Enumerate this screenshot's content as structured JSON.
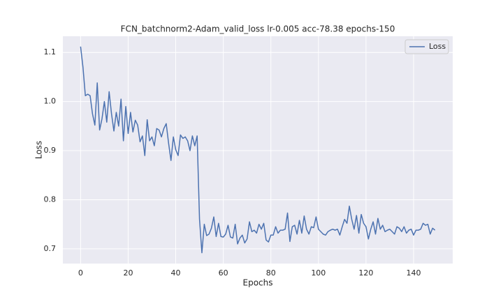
{
  "chart_data": {
    "type": "line",
    "title": "FCN_batchnorm2-Adam_valid_loss lr-0.005 acc-78.38 epochs-150",
    "xlabel": "Epochs",
    "ylabel": "Loss",
    "x": [
      0,
      1,
      2,
      3,
      4,
      5,
      6,
      7,
      8,
      9,
      10,
      11,
      12,
      13,
      14,
      15,
      16,
      17,
      18,
      19,
      20,
      21,
      22,
      23,
      24,
      25,
      26,
      27,
      28,
      29,
      30,
      31,
      32,
      33,
      34,
      35,
      36,
      37,
      38,
      39,
      40,
      41,
      42,
      43,
      44,
      45,
      46,
      47,
      48,
      49,
      50,
      51,
      52,
      53,
      54,
      55,
      56,
      57,
      58,
      59,
      60,
      61,
      62,
      63,
      64,
      65,
      66,
      67,
      68,
      69,
      70,
      71,
      72,
      73,
      74,
      75,
      76,
      77,
      78,
      79,
      80,
      81,
      82,
      83,
      84,
      85,
      86,
      87,
      88,
      89,
      90,
      91,
      92,
      93,
      94,
      95,
      96,
      97,
      98,
      99,
      100,
      101,
      102,
      103,
      104,
      105,
      106,
      107,
      108,
      109,
      110,
      111,
      112,
      113,
      114,
      115,
      116,
      117,
      118,
      119,
      120,
      121,
      122,
      123,
      124,
      125,
      126,
      127,
      128,
      129,
      130,
      131,
      132,
      133,
      134,
      135,
      136,
      137,
      138,
      139,
      140,
      141,
      142,
      143,
      144,
      145,
      146,
      147,
      148,
      149
    ],
    "series": [
      {
        "name": "Loss",
        "color": "#4c72b0",
        "values": [
          1.112,
          1.07,
          1.012,
          1.015,
          1.012,
          0.975,
          0.952,
          1.038,
          0.942,
          0.965,
          1.0,
          0.958,
          1.02,
          0.975,
          0.94,
          0.978,
          0.95,
          1.005,
          0.92,
          0.99,
          0.935,
          0.978,
          0.938,
          0.962,
          0.952,
          0.918,
          0.93,
          0.89,
          0.963,
          0.92,
          0.928,
          0.91,
          0.945,
          0.942,
          0.928,
          0.945,
          0.955,
          0.915,
          0.88,
          0.928,
          0.902,
          0.89,
          0.932,
          0.925,
          0.928,
          0.92,
          0.9,
          0.93,
          0.91,
          0.93,
          0.76,
          0.692,
          0.75,
          0.727,
          0.73,
          0.742,
          0.765,
          0.725,
          0.752,
          0.725,
          0.724,
          0.73,
          0.748,
          0.724,
          0.722,
          0.75,
          0.71,
          0.722,
          0.728,
          0.712,
          0.72,
          0.755,
          0.735,
          0.738,
          0.732,
          0.75,
          0.74,
          0.752,
          0.718,
          0.714,
          0.728,
          0.728,
          0.745,
          0.732,
          0.738,
          0.738,
          0.74,
          0.773,
          0.715,
          0.745,
          0.748,
          0.73,
          0.758,
          0.732,
          0.767,
          0.74,
          0.73,
          0.745,
          0.743,
          0.765,
          0.74,
          0.735,
          0.73,
          0.728,
          0.735,
          0.738,
          0.74,
          0.738,
          0.74,
          0.728,
          0.745,
          0.76,
          0.752,
          0.787,
          0.76,
          0.74,
          0.768,
          0.732,
          0.77,
          0.752,
          0.745,
          0.72,
          0.74,
          0.755,
          0.73,
          0.762,
          0.74,
          0.748,
          0.735,
          0.738,
          0.74,
          0.735,
          0.73,
          0.745,
          0.742,
          0.735,
          0.745,
          0.732,
          0.738,
          0.74,
          0.728,
          0.738,
          0.738,
          0.74,
          0.752,
          0.748,
          0.75,
          0.73,
          0.742,
          0.738
        ]
      }
    ],
    "xlim": [
      -7.45,
      156.45
    ],
    "ylim": [
      0.67,
      1.133
    ],
    "xticks": [
      0,
      20,
      40,
      60,
      80,
      100,
      120,
      140
    ],
    "yticks": [
      0.7,
      0.8,
      0.9,
      {
        "value": 1,
        "label": "1.0"
      },
      1.1
    ],
    "grid": true,
    "legend": "upper right",
    "background": "#eaeaf2"
  }
}
